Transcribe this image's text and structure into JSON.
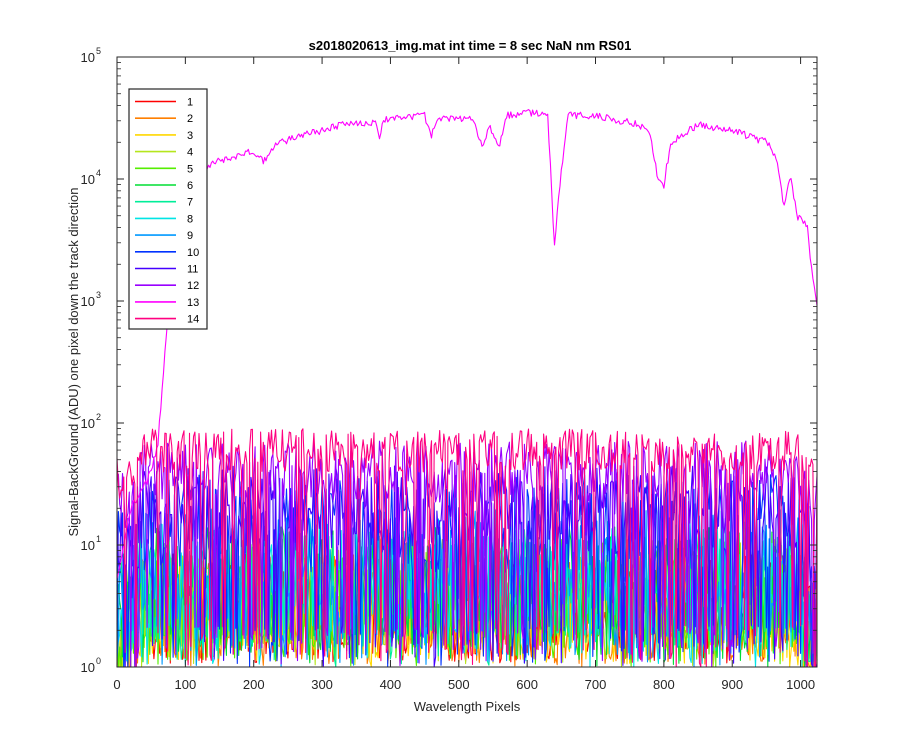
{
  "chart_data": {
    "type": "line",
    "title": "s2018020613_img.mat int time = 8 sec  NaN nm RS01",
    "xlabel": "Wavelength Pixels",
    "ylabel": "Signal-BackGround (ADU) one pixel down the track direction",
    "xlim": [
      0,
      1024
    ],
    "ylim": [
      1,
      100000
    ],
    "yscale": "log",
    "grid": false,
    "legend_position": "top-left",
    "x_ticks": [
      "0",
      "100",
      "200",
      "300",
      "400",
      "500",
      "600",
      "700",
      "800",
      "900",
      "1000"
    ],
    "x_tick_values": [
      0,
      100,
      200,
      300,
      400,
      500,
      600,
      700,
      800,
      900,
      1000
    ],
    "y_ticks": [
      {
        "value": 1,
        "base": "10",
        "exp": "0"
      },
      {
        "value": 10,
        "base": "10",
        "exp": "1"
      },
      {
        "value": 100,
        "base": "10",
        "exp": "2"
      },
      {
        "value": 1000,
        "base": "10",
        "exp": "3"
      },
      {
        "value": 10000,
        "base": "10",
        "exp": "4"
      },
      {
        "value": 100000,
        "base": "10",
        "exp": "5"
      }
    ],
    "series": [
      {
        "name": "1",
        "color": "#ff0000",
        "typical": 3,
        "spread": 0.45
      },
      {
        "name": "2",
        "color": "#ff7f00",
        "typical": 3,
        "spread": 0.45
      },
      {
        "name": "3",
        "color": "#ffd700",
        "typical": 3,
        "spread": 0.45
      },
      {
        "name": "4",
        "color": "#b5e61d",
        "typical": 4,
        "spread": 0.45
      },
      {
        "name": "5",
        "color": "#55ee00",
        "typical": 4,
        "spread": 0.45
      },
      {
        "name": "6",
        "color": "#00dd33",
        "typical": 5,
        "spread": 0.45
      },
      {
        "name": "7",
        "color": "#00ee99",
        "typical": 5,
        "spread": 0.45
      },
      {
        "name": "8",
        "color": "#00e5e5",
        "typical": 6,
        "spread": 0.45
      },
      {
        "name": "9",
        "color": "#0099ff",
        "typical": 7,
        "spread": 0.45
      },
      {
        "name": "10",
        "color": "#0033ff",
        "typical": 15,
        "spread": 0.4
      },
      {
        "name": "11",
        "color": "#4400ff",
        "typical": 20,
        "spread": 0.35
      },
      {
        "name": "12",
        "color": "#9900ff",
        "typical": 40,
        "spread": 0.25
      },
      {
        "name": "13",
        "color": "#ff00ff",
        "profile": [
          [
            0,
            5
          ],
          [
            20,
            20
          ],
          [
            40,
            30
          ],
          [
            50,
            40
          ],
          [
            60,
            70
          ],
          [
            80,
            2000
          ],
          [
            100,
            11000
          ],
          [
            120,
            12000
          ],
          [
            150,
            14000
          ],
          [
            200,
            17000
          ],
          [
            215,
            14000
          ],
          [
            230,
            19000
          ],
          [
            250,
            21000
          ],
          [
            300,
            25000
          ],
          [
            340,
            29000
          ],
          [
            380,
            29000
          ],
          [
            385,
            21000
          ],
          [
            390,
            31000
          ],
          [
            450,
            33000
          ],
          [
            460,
            23000
          ],
          [
            470,
            31000
          ],
          [
            500,
            31000
          ],
          [
            520,
            32000
          ],
          [
            535,
            18000
          ],
          [
            545,
            27000
          ],
          [
            560,
            19000
          ],
          [
            570,
            33000
          ],
          [
            600,
            35000
          ],
          [
            630,
            35000
          ],
          [
            640,
            2800
          ],
          [
            648,
            9000
          ],
          [
            660,
            33000
          ],
          [
            700,
            33000
          ],
          [
            750,
            29000
          ],
          [
            770,
            27000
          ],
          [
            780,
            22000
          ],
          [
            790,
            11000
          ],
          [
            800,
            9000
          ],
          [
            810,
            20000
          ],
          [
            850,
            28000
          ],
          [
            900,
            25000
          ],
          [
            950,
            20000
          ],
          [
            965,
            15000
          ],
          [
            975,
            6000
          ],
          [
            985,
            11000
          ],
          [
            995,
            5000
          ],
          [
            1010,
            4000
          ],
          [
            1015,
            2000
          ],
          [
            1024,
            900
          ]
        ]
      },
      {
        "name": "14",
        "color": "#ff0080",
        "typical": 60,
        "spread": 0.18
      }
    ]
  }
}
